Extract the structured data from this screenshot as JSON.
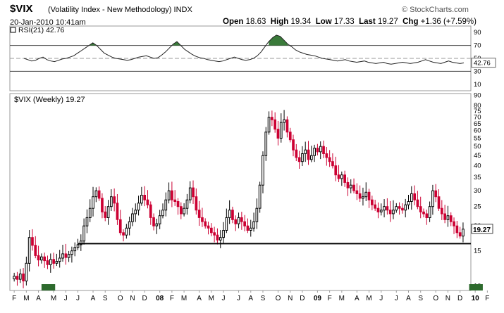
{
  "header": {
    "symbol": "$VIX",
    "name": "(Volatility Index - New Methodology)",
    "exchange": "INDX",
    "date": "20-Jan-2010 10:41am",
    "brand": "© StockCharts.com",
    "open_label": "Open",
    "open": "18.63",
    "high_label": "High",
    "high": "19.34",
    "low_label": "Low",
    "low": "17.33",
    "last_label": "Last",
    "last": "19.27",
    "chg_label": "Chg",
    "chg": "+1.36 (+7.59%)"
  },
  "colors": {
    "up": "#000000",
    "down": "#cc0033",
    "rsi_fill": "#3a7a3a",
    "marker": "#2d6a2d",
    "last_badge": "#ffd700"
  },
  "chart_data": [
    {
      "type": "line",
      "panel": "RSI",
      "label": "RSI(21) 42.76",
      "last_value_label": "42.76",
      "ylim": [
        0,
        100
      ],
      "yticks": [
        10,
        30,
        50,
        70,
        90
      ],
      "reference_lines": [
        70,
        30
      ],
      "values": [
        50,
        48,
        46,
        47,
        50,
        52,
        48,
        46,
        45,
        47,
        49,
        50,
        52,
        54,
        58,
        62,
        66,
        70,
        74,
        70,
        64,
        58,
        55,
        52,
        50,
        49,
        48,
        47,
        48,
        50,
        52,
        53,
        54,
        52,
        50,
        51,
        55,
        60,
        66,
        72,
        76,
        70,
        64,
        60,
        56,
        53,
        51,
        50,
        48,
        47,
        46,
        45,
        46,
        48,
        50,
        52,
        50,
        48,
        47,
        48,
        50,
        54,
        60,
        68,
        76,
        82,
        86,
        84,
        78,
        72,
        68,
        63,
        60,
        58,
        56,
        55,
        54,
        52,
        50,
        49,
        48,
        47,
        46,
        47,
        48,
        46,
        45,
        44,
        45,
        46,
        44,
        43,
        42,
        43,
        44,
        42,
        41,
        42,
        43,
        44,
        43,
        42,
        43,
        44,
        46,
        48,
        46,
        44,
        43,
        42,
        44,
        46,
        44,
        43,
        42,
        43
      ]
    },
    {
      "type": "candlestick",
      "panel": "price",
      "label": "$VIX (Weekly) 19.27",
      "last_value_label": "19.27",
      "scale": "log",
      "ylim": [
        9.5,
        92
      ],
      "yticks": [
        10,
        15,
        20,
        25,
        30,
        35,
        40,
        45,
        50,
        55,
        60,
        65,
        70,
        75,
        80,
        90
      ],
      "horizontal_line": 16.3,
      "xtick_labels": [
        "F",
        "M",
        "A",
        "M",
        "J",
        "J",
        "A",
        "S",
        "O",
        "N",
        "D",
        "08",
        "F",
        "M",
        "A",
        "M",
        "J",
        "J",
        "A",
        "S",
        "O",
        "N",
        "D",
        "09",
        "F",
        "M",
        "A",
        "M",
        "J",
        "J",
        "A",
        "S",
        "O",
        "N",
        "D",
        "10",
        "F"
      ],
      "xtick_weeks": [
        0,
        4,
        8,
        13,
        17,
        21,
        26,
        30,
        35,
        39,
        43,
        48,
        52,
        56,
        61,
        65,
        69,
        74,
        78,
        82,
        87,
        91,
        95,
        100,
        104,
        108,
        113,
        117,
        121,
        126,
        130,
        134,
        139,
        143,
        147,
        152,
        156
      ],
      "closes": [
        11.2,
        10.8,
        11.5,
        10.6,
        13.0,
        17.5,
        16.0,
        14.2,
        13.5,
        14.0,
        13.4,
        12.8,
        13.6,
        13.0,
        13.3,
        13.8,
        14.5,
        13.9,
        14.4,
        15.0,
        15.6,
        16.1,
        16.8,
        20.0,
        22.0,
        24.5,
        28.0,
        30.0,
        27.5,
        23.5,
        22.0,
        25.0,
        28.0,
        26.0,
        21.5,
        18.5,
        18.0,
        19.5,
        21.0,
        23.0,
        24.0,
        26.0,
        28.5,
        27.0,
        25.5,
        22.0,
        20.0,
        20.5,
        22.5,
        24.0,
        27.0,
        30.0,
        27.0,
        26.5,
        25.0,
        23.0,
        24.5,
        27.0,
        31.0,
        28.0,
        24.0,
        22.0,
        21.0,
        20.0,
        19.5,
        18.5,
        18.0,
        17.0,
        17.5,
        19.0,
        22.0,
        24.0,
        21.5,
        20.5,
        22.0,
        21.0,
        20.0,
        19.0,
        19.5,
        21.0,
        24.5,
        32.0,
        45.0,
        59.0,
        70.0,
        68.0,
        61.0,
        55.0,
        66.0,
        68.0,
        59.0,
        54.0,
        48.0,
        44.0,
        42.0,
        46.0,
        48.0,
        43.0,
        45.0,
        49.0,
        47.0,
        50.0,
        46.0,
        44.0,
        42.0,
        40.0,
        36.0,
        34.5,
        36.0,
        33.0,
        31.0,
        32.0,
        30.0,
        29.0,
        27.5,
        28.0,
        29.5,
        27.0,
        25.5,
        24.5,
        23.5,
        24.0,
        25.0,
        24.0,
        23.0,
        24.0,
        25.0,
        24.5,
        24.0,
        25.5,
        26.5,
        29.0,
        27.0,
        25.0,
        23.5,
        23.0,
        22.0,
        25.0,
        30.0,
        28.0,
        24.5,
        23.0,
        21.5,
        22.5,
        21.0,
        20.0,
        18.5,
        17.8,
        19.27
      ]
    }
  ]
}
